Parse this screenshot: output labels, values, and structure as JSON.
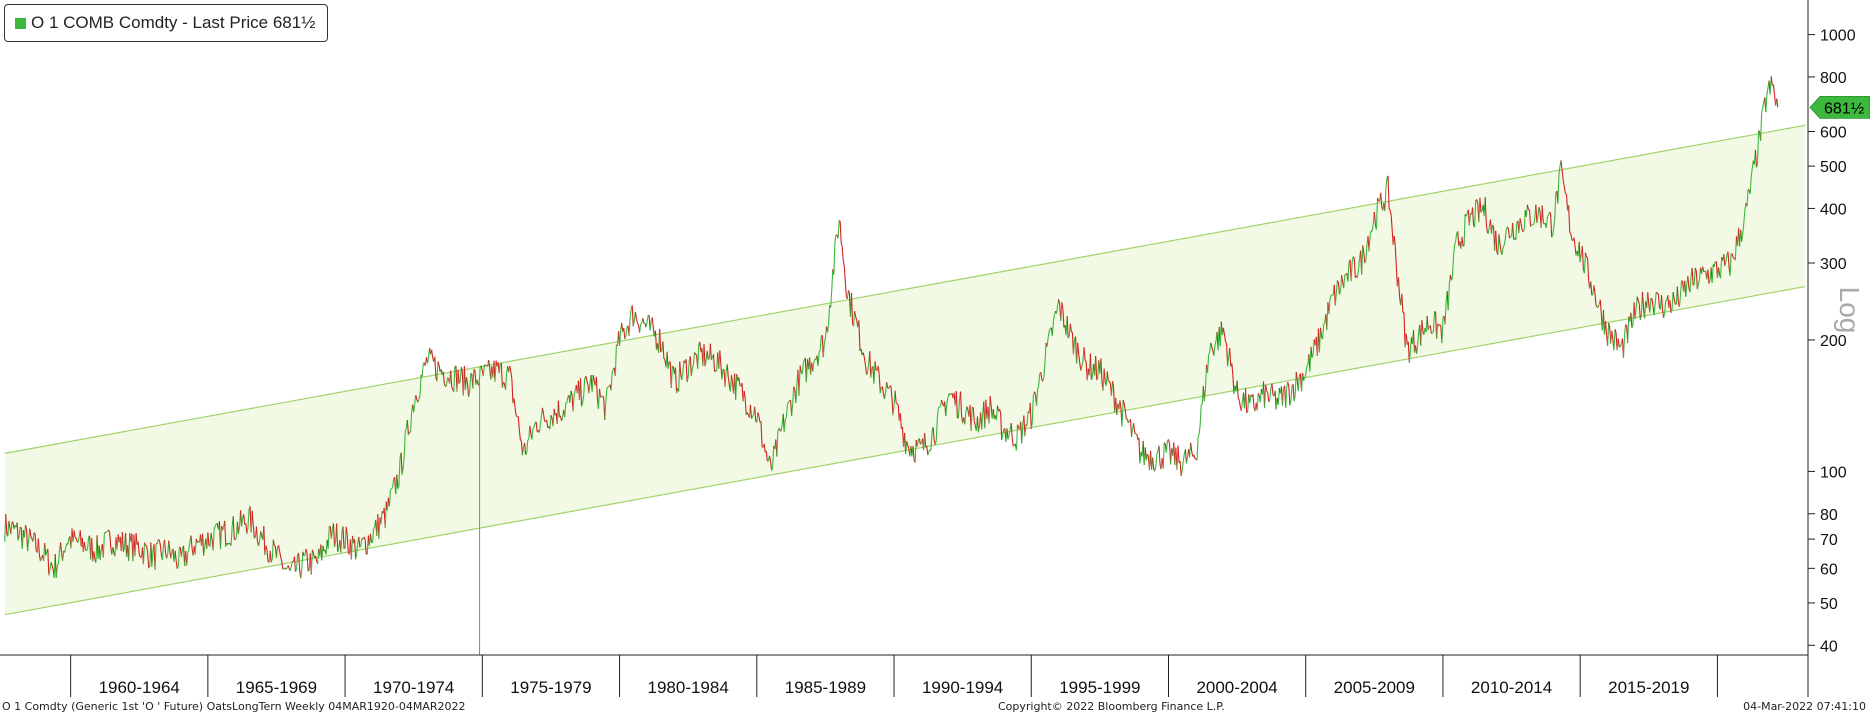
{
  "legend": {
    "label": "O 1 COMB Comdty - Last Price 681½",
    "color": "#3cb83c"
  },
  "footer": {
    "left": "O 1 Comdty (Generic 1st 'O ' Future) OatsLongTern  Weekly 04MAR1920-04MAR2022",
    "center": "Copyright© 2022 Bloomberg Finance L.P.",
    "right": "04-Mar-2022 07:41:10"
  },
  "chart_data": {
    "type": "line",
    "title": "",
    "xlabel": "",
    "ylabel": "",
    "yscale": "log",
    "yscale_label": "Log",
    "ylim": [
      38,
      1200
    ],
    "xlim": [
      1957.5,
      2023.3
    ],
    "y_ticks": [
      40,
      50,
      60,
      70,
      80,
      100,
      200,
      300,
      400,
      500,
      600,
      800,
      1000
    ],
    "x_categories": [
      "1960-1964",
      "1965-1969",
      "1970-1974",
      "1975-1979",
      "1980-1984",
      "1985-1989",
      "1990-1994",
      "1995-1999",
      "2000-2004",
      "2005-2009",
      "2010-2014",
      "2015-2019"
    ],
    "x_category_starts": [
      1960,
      1965,
      1970,
      1975,
      1980,
      1985,
      1990,
      1995,
      2000,
      2005,
      2010,
      2015,
      2020
    ],
    "last_price": 681.5,
    "last_price_label": "681½",
    "colors": {
      "up": "#3cb83c",
      "down": "#d42020",
      "channel_line": "#9fd36a",
      "channel_fill": "#f2f9e4",
      "last_price_marker": "#3cb83c"
    },
    "channel": {
      "upper": [
        [
          1957.6,
          110
        ],
        [
          2023.2,
          620
        ]
      ],
      "lower": [
        [
          1957.6,
          47
        ],
        [
          2023.2,
          265
        ]
      ]
    },
    "series": [
      {
        "x": [
          1957.6,
          1958.2,
          1958.9,
          1959.4,
          1959.9,
          1960.5,
          1961.0,
          1961.5,
          1962.0,
          1962.5,
          1963.0,
          1963.5,
          1964.0,
          1964.5,
          1965.0,
          1965.5,
          1966.0,
          1966.5,
          1967.0,
          1967.5,
          1968.0,
          1968.5,
          1969.0,
          1969.5,
          1970.0,
          1970.5,
          1971.0,
          1971.5,
          1972.0,
          1972.5,
          1973.0,
          1973.5,
          1974.0,
          1974.5,
          1975.0,
          1975.5,
          1976.0,
          1976.5,
          1977.0,
          1977.5,
          1978.0,
          1978.5,
          1979.0,
          1979.5,
          1980.0,
          1980.5,
          1981.0,
          1981.5,
          1982.0,
          1982.5,
          1983.0,
          1983.5,
          1984.0,
          1984.5,
          1985.0,
          1985.5,
          1986.0,
          1986.5,
          1987.0,
          1987.5,
          1988.0,
          1988.3,
          1988.6,
          1989.0,
          1989.5,
          1990.0,
          1990.5,
          1991.0,
          1991.5,
          1992.0,
          1992.5,
          1993.0,
          1993.5,
          1994.0,
          1994.5,
          1995.0,
          1995.5,
          1996.0,
          1996.5,
          1997.0,
          1997.5,
          1998.0,
          1998.5,
          1999.0,
          1999.5,
          2000.0,
          2000.5,
          2001.0,
          2001.5,
          2002.0,
          2002.5,
          2003.0,
          2003.5,
          2004.0,
          2004.5,
          2005.0,
          2005.5,
          2006.0,
          2006.5,
          2007.0,
          2007.5,
          2008.0,
          2008.3,
          2008.7,
          2009.0,
          2009.5,
          2010.0,
          2010.5,
          2011.0,
          2011.5,
          2012.0,
          2012.5,
          2013.0,
          2013.5,
          2014.0,
          2014.3,
          2014.7,
          2015.0,
          2015.5,
          2016.0,
          2016.5,
          2017.0,
          2017.5,
          2018.0,
          2018.5,
          2019.0,
          2019.5,
          2020.0,
          2020.5,
          2021.0,
          2021.5,
          2021.8,
          2022.0,
          2022.2
        ],
        "values": [
          75,
          72,
          66,
          60,
          70,
          68,
          66,
          70,
          68,
          67,
          64,
          66,
          62,
          68,
          70,
          72,
          74,
          78,
          70,
          64,
          58,
          62,
          62,
          72,
          70,
          66,
          72,
          80,
          100,
          145,
          180,
          170,
          165,
          160,
          165,
          170,
          165,
          110,
          130,
          135,
          140,
          150,
          160,
          140,
          200,
          230,
          215,
          200,
          160,
          175,
          185,
          180,
          165,
          150,
          135,
          100,
          130,
          160,
          180,
          200,
          380,
          260,
          220,
          180,
          160,
          145,
          115,
          112,
          125,
          150,
          140,
          130,
          140,
          125,
          120,
          135,
          180,
          240,
          200,
          175,
          170,
          150,
          130,
          110,
          108,
          110,
          105,
          110,
          190,
          210,
          150,
          140,
          150,
          145,
          155,
          170,
          200,
          250,
          280,
          300,
          380,
          440,
          300,
          190,
          200,
          220,
          210,
          330,
          380,
          400,
          330,
          360,
          380,
          390,
          370,
          480,
          350,
          320,
          260,
          210,
          190,
          230,
          250,
          240,
          245,
          270,
          280,
          290,
          300,
          380,
          560,
          730,
          760,
          681.5
        ]
      }
    ]
  }
}
